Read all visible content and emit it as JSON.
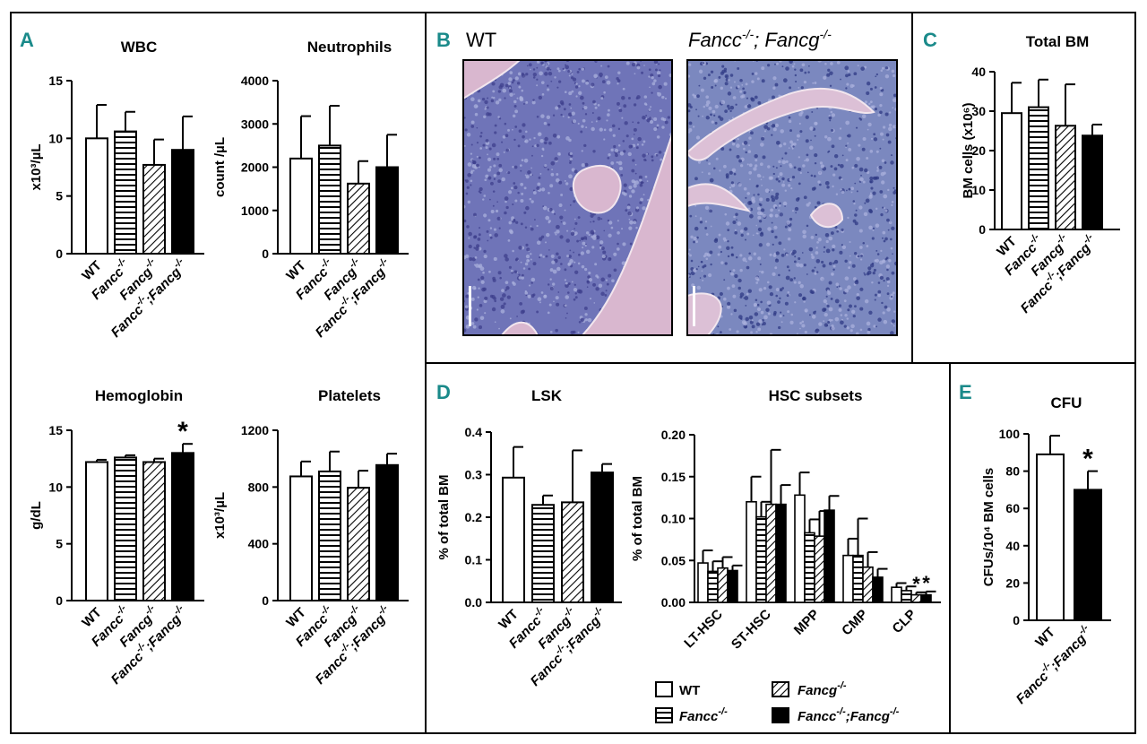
{
  "panel_letters": {
    "a": "A",
    "b": "B",
    "c": "C",
    "d": "D",
    "e": "E"
  },
  "histology": {
    "left_label": "WT",
    "right_label_main": "Fancc",
    "right_label_sup1": "-/-",
    "right_label_mid": "; Fancg",
    "right_label_sup2": "-/-",
    "left_colors": {
      "bg": "#6f74b8",
      "bone": "#d9b7cf",
      "dark": "#3d3f8c"
    },
    "right_colors": {
      "bg": "#7b88bf",
      "bone": "#dcc0d6",
      "dark": "#2f3a84"
    }
  },
  "genotypes": [
    {
      "name": "WT",
      "base": "WT",
      "sup": "",
      "fill": "white"
    },
    {
      "name": "Fancc-/-",
      "base": "Fancc",
      "sup": "-/-",
      "fill": "hstripe"
    },
    {
      "name": "Fancg-/-",
      "base": "Fancg",
      "sup": "-/-",
      "fill": "diag"
    },
    {
      "name": "Fancc-/-;Fancg-/-",
      "base": "Fancc",
      "sup": "-/-",
      "base2": ";Fancg",
      "sup2": "-/-",
      "fill": "black"
    }
  ],
  "legend": {
    "wt": "WT",
    "fancc": "Fancc",
    "fancc_sup": "-/-",
    "fancg": "Fancg",
    "fancg_sup": "-/-",
    "double_a": "Fancc",
    "double_sup1": "-/-",
    "double_b": ";Fancg",
    "double_sup2": "-/-"
  },
  "chart_data": [
    {
      "id": "wbc",
      "type": "bar",
      "title": "WBC",
      "ylabel": "x10³/µL",
      "ylim": [
        0,
        15
      ],
      "yticks": [
        0,
        5,
        10,
        15
      ],
      "categories": [
        "WT",
        "Fancc-/-",
        "Fancg-/-",
        "Fancc-/-;Fancg-/-"
      ],
      "values": [
        10.0,
        10.6,
        7.7,
        9.0
      ],
      "errors": [
        2.9,
        1.7,
        2.2,
        2.9
      ],
      "stars": [
        "",
        "",
        "",
        ""
      ]
    },
    {
      "id": "neutrophils",
      "type": "bar",
      "title": "Neutrophils",
      "ylabel": "count /µL",
      "ylim": [
        0,
        4000
      ],
      "yticks": [
        0,
        1000,
        2000,
        3000,
        4000
      ],
      "categories": [
        "WT",
        "Fancc-/-",
        "Fancg-/-",
        "Fancc-/-;Fancg-/-"
      ],
      "values": [
        2200,
        2500,
        1620,
        2000
      ],
      "errors": [
        980,
        920,
        520,
        750
      ],
      "stars": [
        "",
        "",
        "",
        ""
      ]
    },
    {
      "id": "hemoglobin",
      "type": "bar",
      "title": "Hemoglobin",
      "ylabel": "g/dL",
      "ylim": [
        0,
        15
      ],
      "yticks": [
        0,
        5,
        10,
        15
      ],
      "categories": [
        "WT",
        "Fancc-/-",
        "Fancg-/-",
        "Fancc-/-;Fancg-/-"
      ],
      "values": [
        12.2,
        12.6,
        12.2,
        13.0
      ],
      "errors": [
        0.2,
        0.2,
        0.3,
        0.8
      ],
      "stars": [
        "",
        "",
        "",
        "*"
      ]
    },
    {
      "id": "platelets",
      "type": "bar",
      "title": "Platelets",
      "ylabel": "x10³/µL",
      "ylim": [
        0,
        1200
      ],
      "yticks": [
        0,
        400,
        800,
        1200
      ],
      "categories": [
        "WT",
        "Fancc-/-",
        "Fancg-/-",
        "Fancc-/-;Fancg-/-"
      ],
      "values": [
        875,
        910,
        795,
        955
      ],
      "errors": [
        105,
        140,
        120,
        80
      ],
      "stars": [
        "",
        "",
        "",
        ""
      ]
    },
    {
      "id": "totalbm",
      "type": "bar",
      "title": "Total BM",
      "ylabel": "BM cells (x10⁶)",
      "ylim": [
        0,
        40
      ],
      "yticks": [
        0,
        10,
        20,
        30,
        40
      ],
      "categories": [
        "WT",
        "Fancc-/-",
        "Fancg-/-",
        "Fancc-/-;Fancg-/-"
      ],
      "values": [
        29.5,
        31.0,
        26.3,
        23.8
      ],
      "errors": [
        7.7,
        7.0,
        10.5,
        2.8
      ],
      "stars": [
        "",
        "",
        "",
        ""
      ]
    },
    {
      "id": "lsk",
      "type": "bar",
      "title": "LSK",
      "ylabel": "% of total BM",
      "ylim": [
        0,
        0.4
      ],
      "yticks": [
        0.0,
        0.1,
        0.2,
        0.3,
        0.4
      ],
      "categories": [
        "WT",
        "Fancc-/-",
        "Fancg-/-",
        "Fancc-/-;Fancg-/-"
      ],
      "values": [
        0.293,
        0.229,
        0.235,
        0.305
      ],
      "errors": [
        0.072,
        0.022,
        0.122,
        0.02
      ],
      "stars": [
        "",
        "",
        "",
        ""
      ]
    },
    {
      "id": "hsc",
      "type": "bar",
      "title": "HSC subsets",
      "ylabel": "% of total BM",
      "ylim": [
        0,
        0.2
      ],
      "yticks": [
        0.0,
        0.05,
        0.1,
        0.15,
        0.2
      ],
      "categories": [
        "LT-HSC",
        "ST-HSC",
        "MPP",
        "CMP",
        "CLP"
      ],
      "series": [
        {
          "name": "WT",
          "values": [
            0.047,
            0.12,
            0.128,
            0.056,
            0.018
          ],
          "errors": [
            0.015,
            0.03,
            0.027,
            0.02,
            0.005
          ],
          "stars": [
            "",
            "",
            "",
            "",
            ""
          ]
        },
        {
          "name": "Fancc-/-",
          "values": [
            0.037,
            0.102,
            0.083,
            0.056,
            0.014
          ],
          "errors": [
            0.012,
            0.018,
            0.016,
            0.044,
            0.005
          ],
          "stars": [
            "",
            "",
            "",
            "",
            ""
          ]
        },
        {
          "name": "Fancg-/-",
          "values": [
            0.041,
            0.117,
            0.079,
            0.042,
            0.009
          ],
          "errors": [
            0.013,
            0.065,
            0.03,
            0.018,
            0.003
          ],
          "stars": [
            "",
            "",
            "",
            "",
            "*"
          ]
        },
        {
          "name": "Fancc-/-;Fancg-/-",
          "values": [
            0.038,
            0.117,
            0.11,
            0.03,
            0.009
          ],
          "errors": [
            0.006,
            0.023,
            0.017,
            0.01,
            0.004
          ],
          "stars": [
            "",
            "",
            "",
            "",
            "*"
          ]
        }
      ]
    },
    {
      "id": "cfu",
      "type": "bar",
      "title": "CFU",
      "ylabel": "CFUs/10⁴ BM cells",
      "ylim": [
        0,
        100
      ],
      "yticks": [
        0,
        20,
        40,
        60,
        80,
        100
      ],
      "categories": [
        "WT",
        "Fancc-/-;Fancg-/-"
      ],
      "values": [
        89,
        70
      ],
      "errors": [
        10,
        10
      ],
      "stars": [
        "",
        "*"
      ]
    }
  ]
}
